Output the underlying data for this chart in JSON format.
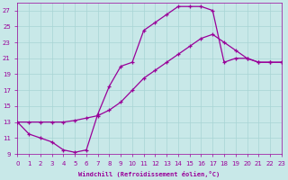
{
  "xlabel": "Windchill (Refroidissement éolien,°C)",
  "xlim": [
    0,
    23
  ],
  "ylim": [
    9,
    28
  ],
  "xticks": [
    0,
    1,
    2,
    3,
    4,
    5,
    6,
    7,
    8,
    9,
    10,
    11,
    12,
    13,
    14,
    15,
    16,
    17,
    18,
    19,
    20,
    21,
    22,
    23
  ],
  "yticks": [
    9,
    11,
    13,
    15,
    17,
    19,
    21,
    23,
    25,
    27
  ],
  "bg_color": "#c8e8e8",
  "grid_color": "#a8d4d4",
  "line_color": "#990099",
  "curve1_x": [
    0,
    1,
    2,
    3,
    4,
    5,
    6,
    7,
    8,
    9,
    10,
    11,
    12,
    13,
    14,
    15,
    16,
    17,
    18,
    19,
    20,
    21,
    22,
    23
  ],
  "curve1_y": [
    13.0,
    11.5,
    11.0,
    10.5,
    9.5,
    9.2,
    9.5,
    14.0,
    17.5,
    20.0,
    20.5,
    24.5,
    25.5,
    26.5,
    27.5,
    27.5,
    27.5,
    27.0,
    20.5,
    21.0,
    21.0,
    20.5,
    20.5,
    20.5
  ],
  "curve2_x": [
    0,
    1,
    2,
    3,
    4,
    5,
    6,
    7,
    8,
    9,
    10,
    11,
    12,
    13,
    14,
    15,
    16,
    17,
    18,
    19,
    20,
    21,
    22,
    23
  ],
  "curve2_y": [
    13.0,
    13.0,
    13.0,
    13.0,
    13.0,
    13.2,
    13.5,
    13.8,
    14.5,
    15.5,
    17.0,
    18.5,
    19.5,
    20.5,
    21.5,
    22.5,
    23.5,
    24.0,
    23.0,
    22.0,
    21.0,
    20.5,
    20.5,
    20.5
  ]
}
